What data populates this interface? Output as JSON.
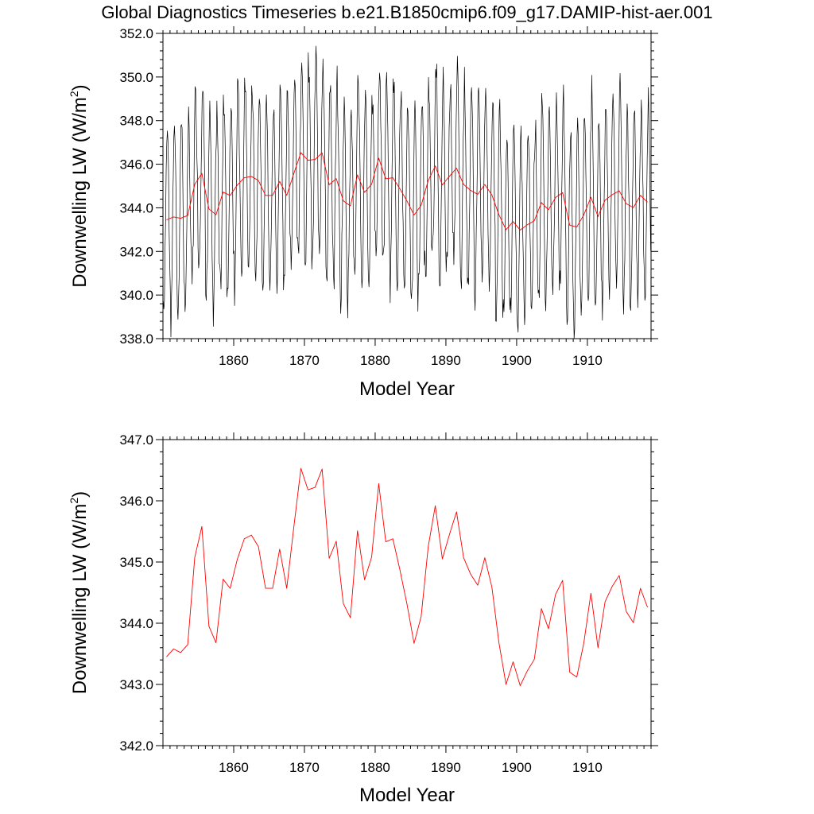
{
  "title": "Global Diagnostics Timeseries b.e21.B1850cmip6.f09_g17.DAMIP-hist-aer.001",
  "colors": {
    "monthly": "#000000",
    "annual": "#ff0000",
    "axes": "#000000"
  },
  "chart_data": [
    {
      "type": "line",
      "xlabel": "Model Year",
      "ylabel_prefix": "Downwelling LW (W/m",
      "ylabel_sup": "2",
      "ylabel_suffix": ")",
      "xlim": [
        1850,
        1919
      ],
      "ylim": [
        338.0,
        352.0
      ],
      "xticks": [
        1860,
        1870,
        1880,
        1890,
        1900,
        1910
      ],
      "xtick_labels": [
        "1860",
        "1870",
        "1880",
        "1890",
        "1900",
        "1910"
      ],
      "yticks": [
        338.0,
        340.0,
        342.0,
        344.0,
        346.0,
        348.0,
        350.0,
        352.0
      ],
      "ytick_labels": [
        "338.0",
        "340.0",
        "342.0",
        "344.0",
        "346.0",
        "348.0",
        "350.0",
        "352.0"
      ],
      "grid": false,
      "series": [
        {
          "color": "#000000",
          "frequency": "monthly",
          "x_start": 1850.04,
          "x_step": 0.0833333,
          "values_note_omitted": true
        },
        {
          "color": "#ff0000",
          "x": [
            1850.5,
            1851.5,
            1852.5,
            1853.5,
            1854.5,
            1855.5,
            1856.5,
            1857.5,
            1858.5,
            1859.5,
            1860.5,
            1861.5,
            1862.5,
            1863.5,
            1864.5,
            1865.5,
            1866.5,
            1867.5,
            1868.5,
            1869.5,
            1870.5,
            1871.5,
            1872.5,
            1873.5,
            1874.5,
            1875.5,
            1876.5,
            1877.5,
            1878.5,
            1879.5,
            1880.5,
            1881.5,
            1882.5,
            1883.5,
            1884.5,
            1885.5,
            1886.5,
            1887.5,
            1888.5,
            1889.5,
            1890.5,
            1891.5,
            1892.5,
            1893.5,
            1894.5,
            1895.5,
            1896.5,
            1897.5,
            1898.5,
            1899.5,
            1900.5,
            1901.5,
            1902.5,
            1903.5,
            1904.5,
            1905.5,
            1906.5,
            1907.5,
            1908.5,
            1909.5,
            1910.5,
            1911.5,
            1912.5,
            1913.5,
            1914.5,
            1915.5,
            1916.5,
            1917.5,
            1918.5
          ],
          "values": [
            343.45,
            343.58,
            343.52,
            343.65,
            345.08,
            345.58,
            343.95,
            343.68,
            344.72,
            344.57,
            345.04,
            345.38,
            345.44,
            345.25,
            344.57,
            344.57,
            345.21,
            344.57,
            345.57,
            346.53,
            346.18,
            346.22,
            346.52,
            345.06,
            345.34,
            344.32,
            344.09,
            345.51,
            344.71,
            345.08,
            346.28,
            345.33,
            345.38,
            344.87,
            344.31,
            343.67,
            344.11,
            345.25,
            345.92,
            345.05,
            345.45,
            345.82,
            345.07,
            344.8,
            344.62,
            345.07,
            344.59,
            343.68,
            343.0,
            343.37,
            342.98,
            343.22,
            343.41,
            344.24,
            343.91,
            344.47,
            344.7,
            343.2,
            343.12,
            343.68,
            344.49,
            343.6,
            344.35,
            344.6,
            344.78,
            344.19,
            344.01,
            344.57,
            344.26
          ]
        }
      ]
    },
    {
      "type": "line",
      "xlabel": "Model Year",
      "ylabel_prefix": "Downwelling LW (W/m",
      "ylabel_sup": "2",
      "ylabel_suffix": ")",
      "xlim": [
        1850,
        1919
      ],
      "ylim": [
        342.0,
        347.0
      ],
      "xticks": [
        1860,
        1870,
        1880,
        1890,
        1900,
        1910
      ],
      "xtick_labels": [
        "1860",
        "1870",
        "1880",
        "1890",
        "1900",
        "1910"
      ],
      "yticks": [
        342.0,
        343.0,
        344.0,
        345.0,
        346.0,
        347.0
      ],
      "ytick_labels": [
        "342.0",
        "343.0",
        "344.0",
        "345.0",
        "346.0",
        "347.0"
      ],
      "grid": false,
      "series": [
        {
          "color": "#ff0000",
          "x": [
            1850.5,
            1851.5,
            1852.5,
            1853.5,
            1854.5,
            1855.5,
            1856.5,
            1857.5,
            1858.5,
            1859.5,
            1860.5,
            1861.5,
            1862.5,
            1863.5,
            1864.5,
            1865.5,
            1866.5,
            1867.5,
            1868.5,
            1869.5,
            1870.5,
            1871.5,
            1872.5,
            1873.5,
            1874.5,
            1875.5,
            1876.5,
            1877.5,
            1878.5,
            1879.5,
            1880.5,
            1881.5,
            1882.5,
            1883.5,
            1884.5,
            1885.5,
            1886.5,
            1887.5,
            1888.5,
            1889.5,
            1890.5,
            1891.5,
            1892.5,
            1893.5,
            1894.5,
            1895.5,
            1896.5,
            1897.5,
            1898.5,
            1899.5,
            1900.5,
            1901.5,
            1902.5,
            1903.5,
            1904.5,
            1905.5,
            1906.5,
            1907.5,
            1908.5,
            1909.5,
            1910.5,
            1911.5,
            1912.5,
            1913.5,
            1914.5,
            1915.5,
            1916.5,
            1917.5,
            1918.5
          ],
          "values": [
            343.45,
            343.58,
            343.52,
            343.65,
            345.08,
            345.58,
            343.95,
            343.68,
            344.72,
            344.57,
            345.04,
            345.38,
            345.44,
            345.25,
            344.57,
            344.57,
            345.21,
            344.57,
            345.57,
            346.53,
            346.18,
            346.22,
            346.52,
            345.06,
            345.34,
            344.32,
            344.09,
            345.51,
            344.71,
            345.08,
            346.28,
            345.33,
            345.38,
            344.87,
            344.31,
            343.67,
            344.11,
            345.25,
            345.92,
            345.05,
            345.45,
            345.82,
            345.07,
            344.8,
            344.62,
            345.07,
            344.59,
            343.68,
            343.0,
            343.37,
            342.98,
            343.22,
            343.41,
            344.24,
            343.91,
            344.47,
            344.7,
            343.2,
            343.12,
            343.68,
            344.49,
            343.6,
            344.35,
            344.6,
            344.78,
            344.19,
            344.01,
            344.57,
            344.26
          ]
        }
      ]
    }
  ]
}
